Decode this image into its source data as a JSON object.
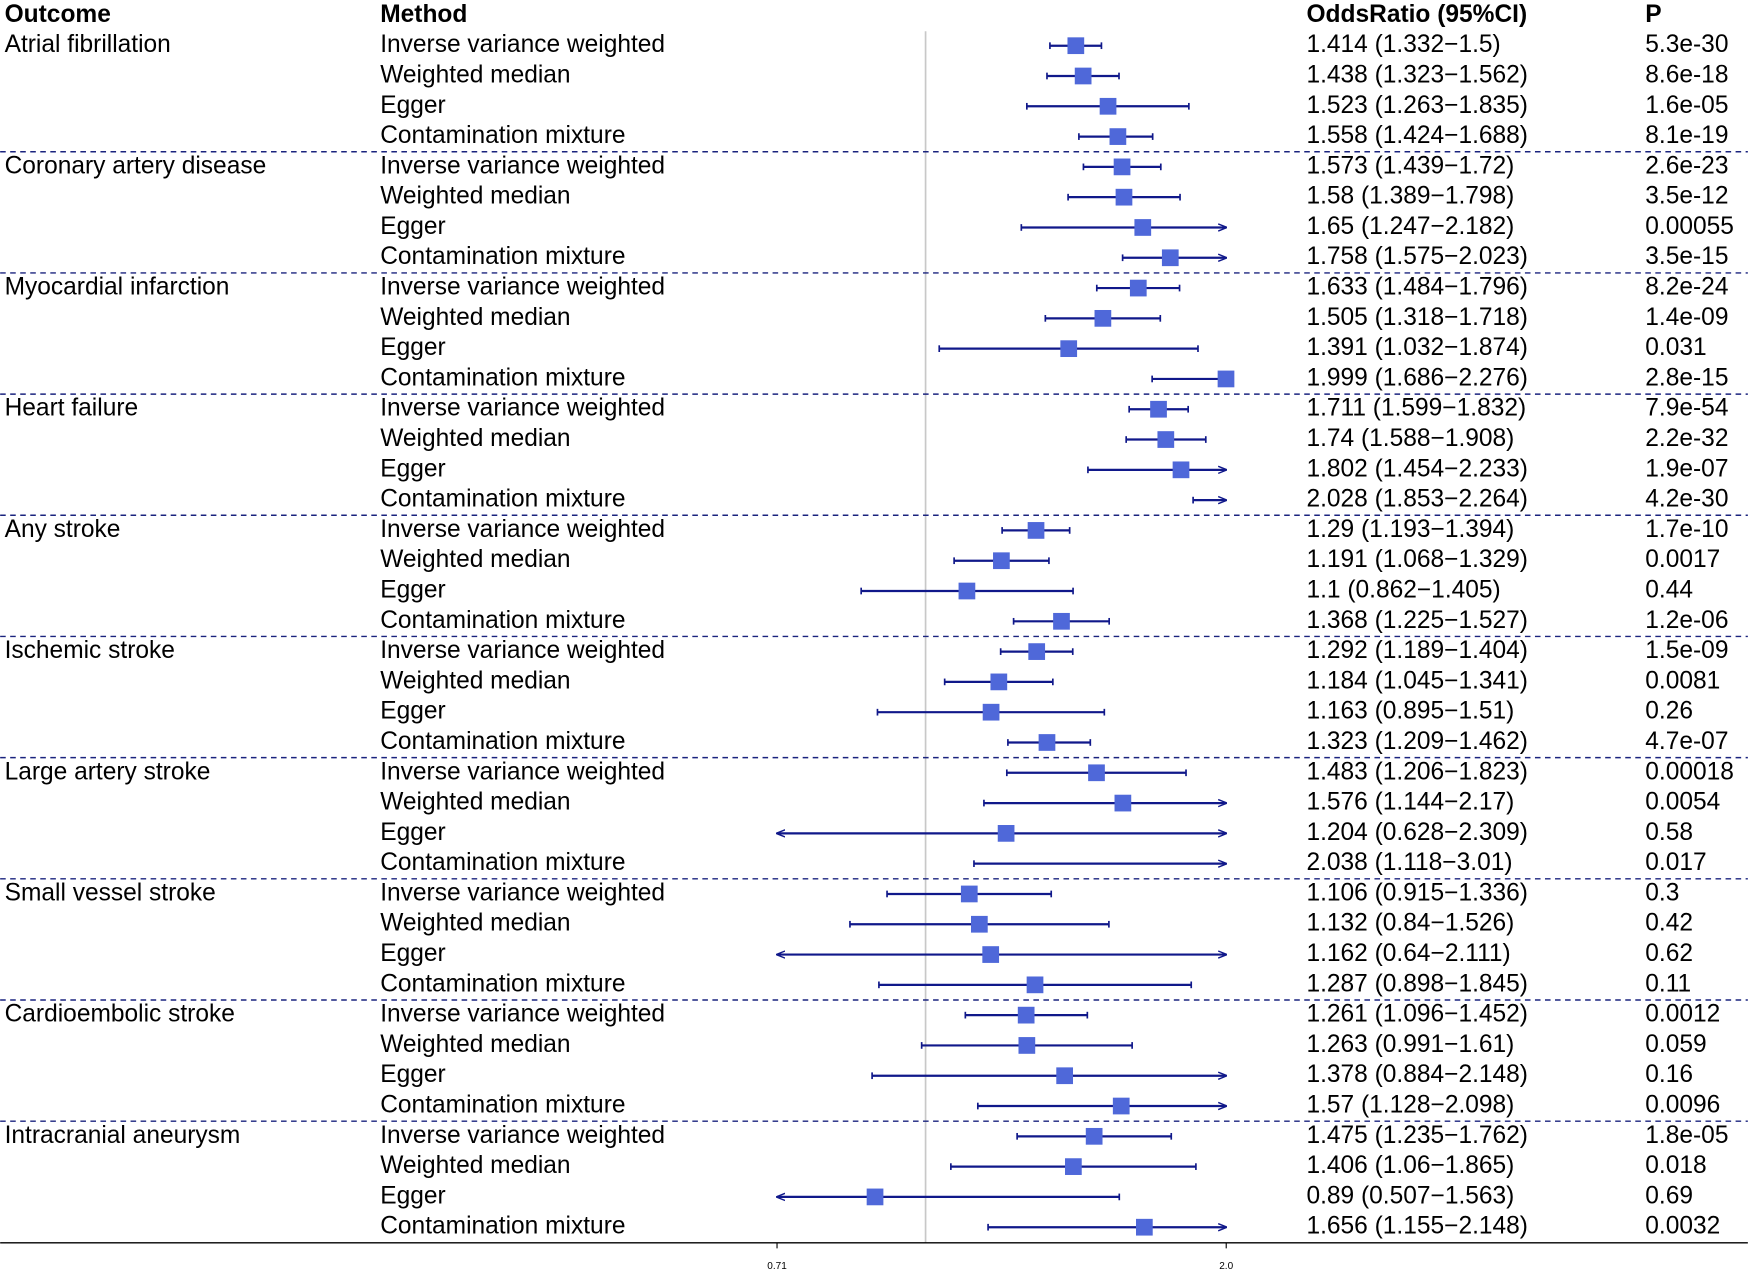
{
  "chart_data": {
    "type": "forest",
    "headers": {
      "outcome": "Outcome",
      "method": "Method",
      "estimate": "OddsRatio (95%CI)",
      "p": "P"
    },
    "xscale": "log",
    "xlim": [
      0.71,
      2.0
    ],
    "xticks": [
      0.71,
      {
        "value": 2.0,
        "label": "2.0"
      }
    ],
    "reference": 1,
    "point_color": "#4f68d9",
    "line_color": "#10188a",
    "groups": [
      {
        "outcome": "Atrial fibrillation",
        "methods": [
          "Inverse variance weighted",
          "Weighted median",
          "Egger",
          "Contamination mixture"
        ],
        "values": [
          1.414,
          1.438,
          1.523,
          1.558
        ],
        "lower": [
          1.332,
          1.323,
          1.263,
          1.424
        ],
        "upper": [
          1.5,
          1.562,
          1.835,
          1.688
        ],
        "value_labels": [
          "1.414 (1.332−1.5)",
          "1.438 (1.323−1.562)",
          "1.523 (1.263−1.835)",
          "1.558 (1.424−1.688)"
        ],
        "p": [
          "5.3e-30",
          "8.6e-18",
          "1.6e-05",
          "8.1e-19"
        ]
      },
      {
        "outcome": "Coronary artery disease",
        "methods": [
          "Inverse variance weighted",
          "Weighted median",
          "Egger",
          "Contamination mixture"
        ],
        "values": [
          1.573,
          1.58,
          1.65,
          1.758
        ],
        "lower": [
          1.439,
          1.389,
          1.247,
          1.575
        ],
        "upper": [
          1.72,
          1.798,
          2.182,
          2.023
        ],
        "value_labels": [
          "1.573 (1.439−1.72)",
          "1.58 (1.389−1.798)",
          "1.65 (1.247−2.182)",
          "1.758 (1.575−2.023)"
        ],
        "p": [
          "2.6e-23",
          "3.5e-12",
          "0.00055",
          "3.5e-15"
        ]
      },
      {
        "outcome": "Myocardial infarction",
        "methods": [
          "Inverse variance weighted",
          "Weighted median",
          "Egger",
          "Contamination mixture"
        ],
        "values": [
          1.633,
          1.505,
          1.391,
          1.999
        ],
        "lower": [
          1.484,
          1.318,
          1.032,
          1.686
        ],
        "upper": [
          1.796,
          1.718,
          1.874,
          2.276
        ],
        "value_labels": [
          "1.633 (1.484−1.796)",
          "1.505 (1.318−1.718)",
          "1.391 (1.032−1.874)",
          "1.999 (1.686−2.276)"
        ],
        "p": [
          "8.2e-24",
          "1.4e-09",
          "0.031",
          "2.8e-15"
        ]
      },
      {
        "outcome": "Heart failure",
        "methods": [
          "Inverse variance weighted",
          "Weighted median",
          "Egger",
          "Contamination mixture"
        ],
        "values": [
          1.711,
          1.74,
          1.802,
          2.028
        ],
        "lower": [
          1.599,
          1.588,
          1.454,
          1.853
        ],
        "upper": [
          1.832,
          1.908,
          2.233,
          2.264
        ],
        "value_labels": [
          "1.711 (1.599−1.832)",
          "1.74 (1.588−1.908)",
          "1.802 (1.454−2.233)",
          "2.028 (1.853−2.264)"
        ],
        "p": [
          "7.9e-54",
          "2.2e-32",
          "1.9e-07",
          "4.2e-30"
        ]
      },
      {
        "outcome": "Any stroke",
        "methods": [
          "Inverse variance weighted",
          "Weighted median",
          "Egger",
          "Contamination mixture"
        ],
        "values": [
          1.29,
          1.191,
          1.1,
          1.368
        ],
        "lower": [
          1.193,
          1.068,
          0.862,
          1.225
        ],
        "upper": [
          1.394,
          1.329,
          1.405,
          1.527
        ],
        "value_labels": [
          "1.29 (1.193−1.394)",
          "1.191 (1.068−1.329)",
          "1.1 (0.862−1.405)",
          "1.368 (1.225−1.527)"
        ],
        "p": [
          "1.7e-10",
          "0.0017",
          "0.44",
          "1.2e-06"
        ]
      },
      {
        "outcome": "Ischemic stroke",
        "methods": [
          "Inverse variance weighted",
          "Weighted median",
          "Egger",
          "Contamination mixture"
        ],
        "values": [
          1.292,
          1.184,
          1.163,
          1.323
        ],
        "lower": [
          1.189,
          1.045,
          0.895,
          1.209
        ],
        "upper": [
          1.404,
          1.341,
          1.51,
          1.462
        ],
        "value_labels": [
          "1.292 (1.189−1.404)",
          "1.184 (1.045−1.341)",
          "1.163 (0.895−1.51)",
          "1.323 (1.209−1.462)"
        ],
        "p": [
          "1.5e-09",
          "0.0081",
          "0.26",
          "4.7e-07"
        ]
      },
      {
        "outcome": "Large artery stroke",
        "methods": [
          "Inverse variance weighted",
          "Weighted median",
          "Egger",
          "Contamination mixture"
        ],
        "values": [
          1.483,
          1.576,
          1.204,
          2.038
        ],
        "lower": [
          1.206,
          1.144,
          0.628,
          1.118
        ],
        "upper": [
          1.823,
          2.17,
          2.309,
          3.01
        ],
        "value_labels": [
          "1.483 (1.206−1.823)",
          "1.576 (1.144−2.17)",
          "1.204 (0.628−2.309)",
          "2.038 (1.118−3.01)"
        ],
        "p": [
          "0.00018",
          "0.0054",
          "0.58",
          "0.017"
        ]
      },
      {
        "outcome": "Small vessel stroke",
        "methods": [
          "Inverse variance weighted",
          "Weighted median",
          "Egger",
          "Contamination mixture"
        ],
        "values": [
          1.106,
          1.132,
          1.162,
          1.287
        ],
        "lower": [
          0.915,
          0.84,
          0.64,
          0.898
        ],
        "upper": [
          1.336,
          1.526,
          2.111,
          1.845
        ],
        "value_labels": [
          "1.106 (0.915−1.336)",
          "1.132 (0.84−1.526)",
          "1.162 (0.64−2.111)",
          "1.287 (0.898−1.845)"
        ],
        "p": [
          "0.3",
          "0.42",
          "0.62",
          "0.11"
        ]
      },
      {
        "outcome": "Cardioembolic stroke",
        "methods": [
          "Inverse variance weighted",
          "Weighted median",
          "Egger",
          "Contamination mixture"
        ],
        "values": [
          1.261,
          1.263,
          1.378,
          1.57
        ],
        "lower": [
          1.096,
          0.991,
          0.884,
          1.128
        ],
        "upper": [
          1.452,
          1.61,
          2.148,
          2.098
        ],
        "value_labels": [
          "1.261 (1.096−1.452)",
          "1.263 (0.991−1.61)",
          "1.378 (0.884−2.148)",
          "1.57 (1.128−2.098)"
        ],
        "p": [
          "0.0012",
          "0.059",
          "0.16",
          "0.0096"
        ]
      },
      {
        "outcome": "Intracranial aneurysm",
        "methods": [
          "Inverse variance weighted",
          "Weighted median",
          "Egger",
          "Contamination mixture"
        ],
        "values": [
          1.475,
          1.406,
          0.89,
          1.656
        ],
        "lower": [
          1.235,
          1.06,
          0.507,
          1.155
        ],
        "upper": [
          1.762,
          1.865,
          1.563,
          2.148
        ],
        "value_labels": [
          "1.475 (1.235−1.762)",
          "1.406 (1.06−1.865)",
          "0.89 (0.507−1.563)",
          "1.656 (1.155−2.148)"
        ],
        "p": [
          "1.8e-05",
          "0.018",
          "0.69",
          "0.0032"
        ]
      }
    ]
  }
}
